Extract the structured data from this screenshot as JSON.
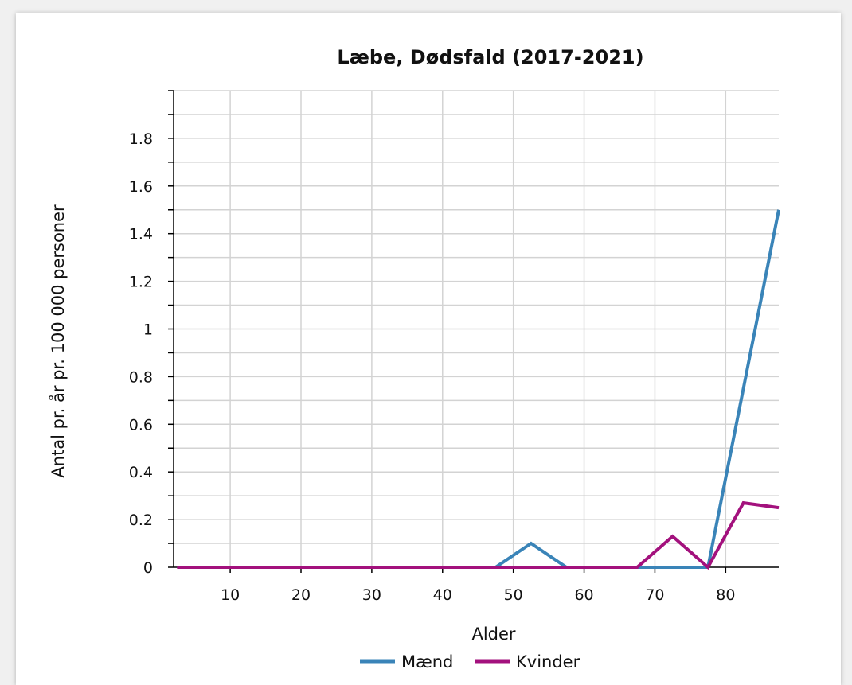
{
  "chart_data": {
    "type": "line",
    "title": "Læbe, Dødsfald (2017-2021)",
    "xlabel": "Alder",
    "ylabel": "Antal pr. år pr. 100 000 personer",
    "x": [
      2.5,
      7.5,
      12.5,
      17.5,
      22.5,
      27.5,
      32.5,
      37.5,
      42.5,
      47.5,
      52.5,
      57.5,
      62.5,
      67.5,
      72.5,
      77.5,
      82.5,
      87.5
    ],
    "xlim": [
      2,
      87.5
    ],
    "ylim": [
      0,
      2.0
    ],
    "xticks": [
      "10",
      "20",
      "30",
      "40",
      "50",
      "60",
      "70",
      "80"
    ],
    "xtick_values": [
      10,
      20,
      30,
      40,
      50,
      60,
      70,
      80
    ],
    "yticks": [
      "0",
      "0.2",
      "0.4",
      "0.6",
      "0.8",
      "1",
      "1.2",
      "1.4",
      "1.6",
      "1.8"
    ],
    "ytick_values": [
      0,
      0.2,
      0.4,
      0.6,
      0.8,
      1.0,
      1.2,
      1.4,
      1.6,
      1.8
    ],
    "grid": true,
    "legend_position": "bottom-center",
    "series": [
      {
        "name": "Mænd",
        "color": "#3a84b8",
        "values": [
          0,
          0,
          0,
          0,
          0,
          0,
          0,
          0,
          0,
          0,
          0.1,
          0,
          0,
          0,
          0,
          0,
          0.75,
          1.5
        ]
      },
      {
        "name": "Kvinder",
        "color": "#a3117d",
        "values": [
          0,
          0,
          0,
          0,
          0,
          0,
          0,
          0,
          0,
          0,
          0,
          0,
          0,
          0,
          0.13,
          0,
          0.27,
          0.25
        ]
      }
    ]
  }
}
